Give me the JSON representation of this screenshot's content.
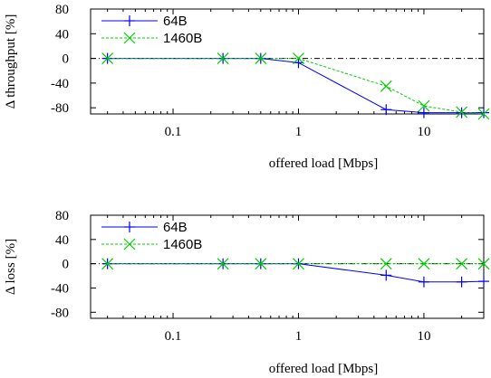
{
  "chart_data": [
    {
      "type": "line",
      "xscale": "log",
      "xlabel": "offered load [Mbps]",
      "ylabel": "Δ throughput [%]",
      "xlim": [
        0.022,
        30
      ],
      "ylim": [
        -90,
        80
      ],
      "xticks": [
        0.1,
        1,
        10
      ],
      "xtick_labels": [
        "0.1",
        "1",
        "10"
      ],
      "yticks": [
        80,
        40,
        0,
        -40,
        -80
      ],
      "ytick_labels": [
        "80",
        "40",
        "0",
        "-40",
        "-80"
      ],
      "reference_line": 0,
      "legend_position": "top-left",
      "series": [
        {
          "name": "64B",
          "color": "#0000ff",
          "dash": "solid",
          "marker": "plus",
          "x": [
            0.03,
            0.25,
            0.5,
            1,
            5,
            10,
            20,
            30
          ],
          "y": [
            0,
            0,
            0,
            -7,
            -83,
            -88,
            -88,
            -88
          ]
        },
        {
          "name": "1460B",
          "color": "#00cc00",
          "dash": "dashed",
          "marker": "cross",
          "x": [
            0.03,
            0.25,
            0.5,
            1,
            5,
            10,
            20,
            30
          ],
          "y": [
            0,
            0,
            0,
            0,
            -45,
            -77,
            -87,
            -90
          ]
        }
      ]
    },
    {
      "type": "line",
      "xscale": "log",
      "xlabel": "offered load [Mbps]",
      "ylabel": "Δ loss [%]",
      "xlim": [
        0.022,
        30
      ],
      "ylim": [
        -90,
        80
      ],
      "xticks": [
        0.1,
        1,
        10
      ],
      "xtick_labels": [
        "0.1",
        "1",
        "10"
      ],
      "yticks": [
        80,
        40,
        0,
        -40,
        -80
      ],
      "ytick_labels": [
        "80",
        "40",
        "0",
        "-40",
        "-80"
      ],
      "reference_line": 0,
      "legend_position": "top-left",
      "series": [
        {
          "name": "64B",
          "color": "#0000ff",
          "dash": "solid",
          "marker": "plus",
          "x": [
            0.03,
            0.25,
            0.5,
            1,
            5,
            10,
            20,
            30
          ],
          "y": [
            0,
            0,
            0,
            0,
            -19,
            -30,
            -30,
            -29
          ]
        },
        {
          "name": "1460B",
          "color": "#00cc00",
          "dash": "dashed",
          "marker": "cross",
          "x": [
            0.03,
            0.25,
            0.5,
            1,
            5,
            10,
            20,
            30
          ],
          "y": [
            0,
            0,
            0,
            0,
            0,
            0,
            0,
            0
          ]
        }
      ]
    }
  ]
}
